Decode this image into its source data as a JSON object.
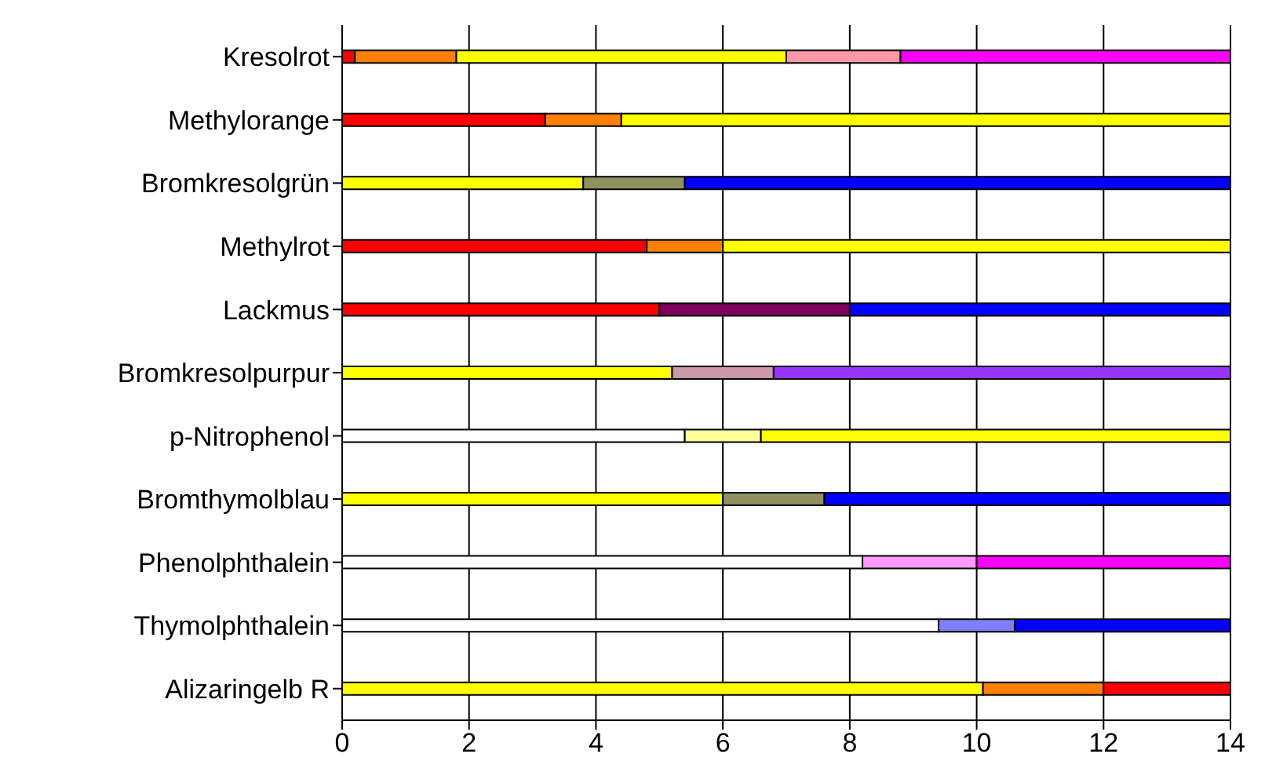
{
  "chart_data": {
    "type": "bar",
    "orientation": "horizontal",
    "stacked": true,
    "categories": [
      "Kresolrot",
      "Methylorange",
      "Bromkresolgrün",
      "Methylrot",
      "Lackmus",
      "Bromkresolpurpur",
      "p-Nitrophenol",
      "Bromthymolblau",
      "Phenolphthalein",
      "Thymolphthalein",
      "Alizaringelb R"
    ],
    "series": [
      {
        "values": [
          0.2,
          3.2,
          3.8,
          4.8,
          5.0,
          5.2,
          5.4,
          6.0,
          8.2,
          9.4,
          10.1
        ],
        "colors": [
          "#ff0000",
          "#ff0000",
          "#ffff00",
          "#ff0000",
          "#ff0000",
          "#ffff00",
          "#ffffff",
          "#ffff00",
          "#ffffff",
          "#ffffff",
          "#ffff00"
        ]
      },
      {
        "values": [
          1.6,
          1.2,
          1.6,
          1.2,
          3.0,
          1.6,
          1.2,
          1.6,
          1.8,
          1.2,
          1.9
        ],
        "colors": [
          "#ff8000",
          "#ff8000",
          "#8f9060",
          "#ff8000",
          "#800060",
          "#cc99aa",
          "#ffff99",
          "#8f9060",
          "#ff99ff",
          "#8080ff",
          "#ff8000"
        ]
      },
      {
        "values": [
          5.2,
          9.6,
          8.6,
          8.0,
          6.0,
          7.2,
          7.4,
          6.4,
          4.0,
          3.4,
          2.0
        ],
        "colors": [
          "#ffff00",
          "#ffff00",
          "#0000ff",
          "#ffff00",
          "#0000ff",
          "#9933ff",
          "#ffff00",
          "#0000ff",
          "#ff00ff",
          "#0000ff",
          "#ff0000"
        ]
      },
      {
        "values": [
          1.8,
          null,
          null,
          null,
          null,
          null,
          null,
          null,
          null,
          null,
          null
        ],
        "colors": [
          "#ff99aa",
          null,
          null,
          null,
          null,
          null,
          null,
          null,
          null,
          null,
          null
        ]
      },
      {
        "values": [
          5.2,
          null,
          null,
          null,
          null,
          null,
          null,
          null,
          null,
          null,
          null
        ],
        "colors": [
          "#ff00ff",
          null,
          null,
          null,
          null,
          null,
          null,
          null,
          null,
          null,
          null
        ]
      }
    ],
    "xlim": [
      0,
      14
    ],
    "xticks": [
      0,
      2,
      4,
      6,
      8,
      10,
      12,
      14
    ],
    "grid": "x"
  }
}
